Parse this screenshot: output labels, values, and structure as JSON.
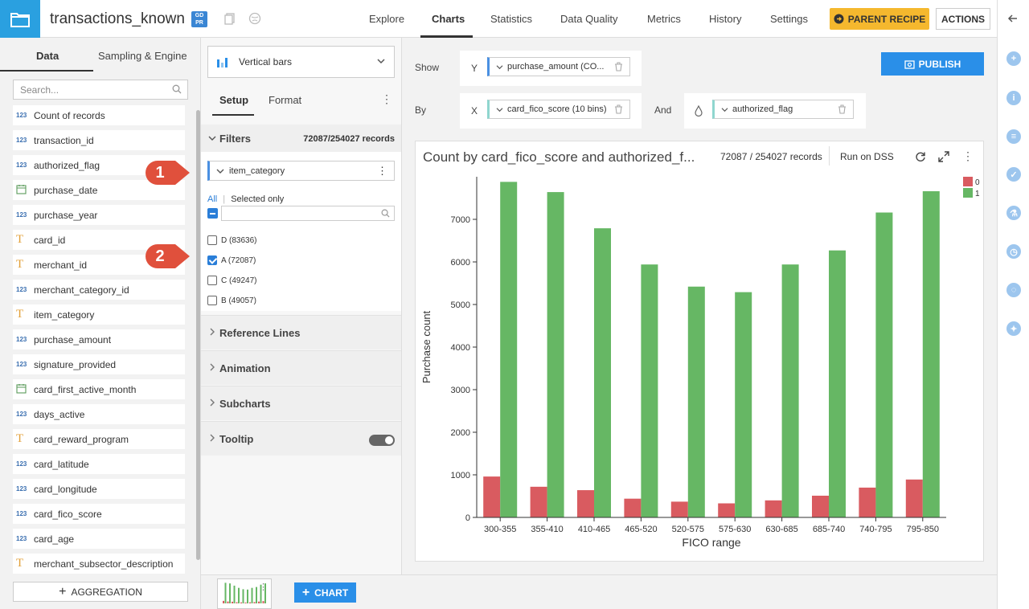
{
  "app": {
    "dataset_name": "transactions_known",
    "gdpr_badge": "GD PR"
  },
  "nav": {
    "items": [
      "Explore",
      "Charts",
      "Statistics",
      "Data Quality",
      "Metrics",
      "History",
      "Settings"
    ],
    "active": "Charts",
    "parent_recipe": "PARENT RECIPE",
    "actions": "ACTIONS"
  },
  "left": {
    "tabs": [
      "Data",
      "Sampling & Engine"
    ],
    "search_placeholder": "Search...",
    "columns": [
      {
        "type": "num",
        "name": "Count of records"
      },
      {
        "type": "num",
        "name": "transaction_id"
      },
      {
        "type": "num",
        "name": "authorized_flag"
      },
      {
        "type": "date",
        "name": "purchase_date"
      },
      {
        "type": "num",
        "name": "purchase_year"
      },
      {
        "type": "txt",
        "name": "card_id"
      },
      {
        "type": "txt",
        "name": "merchant_id"
      },
      {
        "type": "num",
        "name": "merchant_category_id"
      },
      {
        "type": "txt",
        "name": "item_category"
      },
      {
        "type": "num",
        "name": "purchase_amount"
      },
      {
        "type": "num",
        "name": "signature_provided"
      },
      {
        "type": "date",
        "name": "card_first_active_month"
      },
      {
        "type": "num",
        "name": "days_active"
      },
      {
        "type": "txt",
        "name": "card_reward_program"
      },
      {
        "type": "num",
        "name": "card_latitude"
      },
      {
        "type": "num",
        "name": "card_longitude"
      },
      {
        "type": "num",
        "name": "card_fico_score"
      },
      {
        "type": "num",
        "name": "card_age"
      },
      {
        "type": "txt",
        "name": "merchant_subsector_description"
      }
    ],
    "num_badge": "123",
    "txt_badge": "T",
    "aggregation_button": "AGGREGATION"
  },
  "middle": {
    "chart_type": "Vertical bars",
    "tabs": [
      "Setup",
      "Format"
    ],
    "filters_title": "Filters",
    "filters_count": "72087/254027 records",
    "filter_field": "item_category",
    "all_label": "All",
    "selected_only_label": "Selected only",
    "filter_values": [
      {
        "label": "D (83636)",
        "checked": false
      },
      {
        "label": "A (72087)",
        "checked": true
      },
      {
        "label": "C (49247)",
        "checked": false
      },
      {
        "label": "B (49057)",
        "checked": false
      }
    ],
    "sections": [
      "Reference Lines",
      "Animation",
      "Subcharts",
      "Tooltip"
    ],
    "tooltip_enabled": true
  },
  "callouts": [
    "1",
    "2"
  ],
  "main": {
    "show_label": "Show",
    "by_label": "By",
    "and_label": "And",
    "y_axis_letter": "Y",
    "x_axis_letter": "X",
    "y_field": "purchase_amount (CO...",
    "x_field": "card_fico_score (10 bins)",
    "color_field": "authorized_flag",
    "publish_button": "PUBLISH",
    "chart_title": "Count by card_fico_score and authorized_f...",
    "chart_records": "72087 / 254027 records",
    "run_on": "Run on DSS"
  },
  "bottom": {
    "add_chart_button": "CHART"
  },
  "colors": {
    "series_0": "#d95b60",
    "series_1": "#66b764",
    "accent": "#2a8fe8",
    "parent_recipe": "#f5b82e"
  },
  "chart_data": {
    "type": "bar",
    "xlabel": "FICO range",
    "ylabel": "Purchase count",
    "categories": [
      "300-355",
      "355-410",
      "410-465",
      "465-520",
      "520-575",
      "575-630",
      "630-685",
      "685-740",
      "740-795",
      "795-850"
    ],
    "series": [
      {
        "name": "0",
        "values": [
          960,
          720,
          640,
          440,
          370,
          330,
          400,
          510,
          700,
          890
        ]
      },
      {
        "name": "1",
        "values": [
          7880,
          7640,
          6790,
          5940,
          5420,
          5290,
          5940,
          6270,
          7160,
          7660
        ]
      }
    ],
    "ylim": [
      0,
      8000
    ],
    "yticks": [
      0,
      1000,
      2000,
      3000,
      4000,
      5000,
      6000,
      7000
    ],
    "legend": "top-right",
    "grid": false
  }
}
